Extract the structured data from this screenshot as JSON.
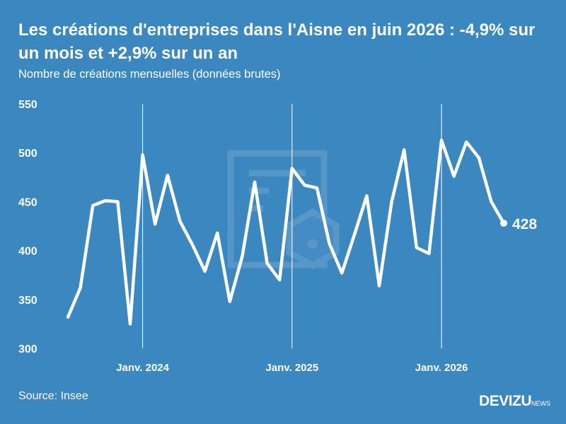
{
  "header": {
    "title": "Les créations d'entreprises dans l'Aisne en juin 2026 : -4,9% sur un mois et +2,9% sur un an",
    "subtitle": "Nombre de créations mensuelles (données brutes)"
  },
  "footer": {
    "source": "Source: Insee",
    "brand": "DEVIZU",
    "brand_suffix": "NEWS"
  },
  "colors": {
    "background": "#3b87c0",
    "line": "#ffffff",
    "watermark": "#6da5cf"
  },
  "chart_data": {
    "type": "line",
    "title": "Les créations d'entreprises dans l'Aisne en juin 2026 : -4,9% sur un mois et +2,9% sur un an",
    "subtitle": "Nombre de créations mensuelles (données brutes)",
    "xlabel": "",
    "ylabel": "",
    "x_start": "2023-07",
    "x_end": "2026-06",
    "ylim": [
      300,
      550
    ],
    "yticks": [
      300,
      350,
      400,
      450,
      500,
      550
    ],
    "xticks": [
      {
        "date": "2024-01",
        "label": "Janv. 2024"
      },
      {
        "date": "2025-01",
        "label": "Janv. 2025"
      },
      {
        "date": "2026-01",
        "label": "Janv. 2026"
      }
    ],
    "grid": "vertical lines at xticks",
    "legend": "none",
    "series": [
      {
        "values": [
          332,
          362,
          446,
          451,
          450,
          325,
          498,
          427,
          477,
          430,
          406,
          379,
          418,
          348,
          394,
          470,
          387,
          370,
          484,
          467,
          464,
          407,
          377,
          416,
          456,
          364,
          450,
          503,
          403,
          397,
          513,
          476,
          511,
          495,
          450,
          428
        ]
      }
    ],
    "end_label": "428"
  }
}
